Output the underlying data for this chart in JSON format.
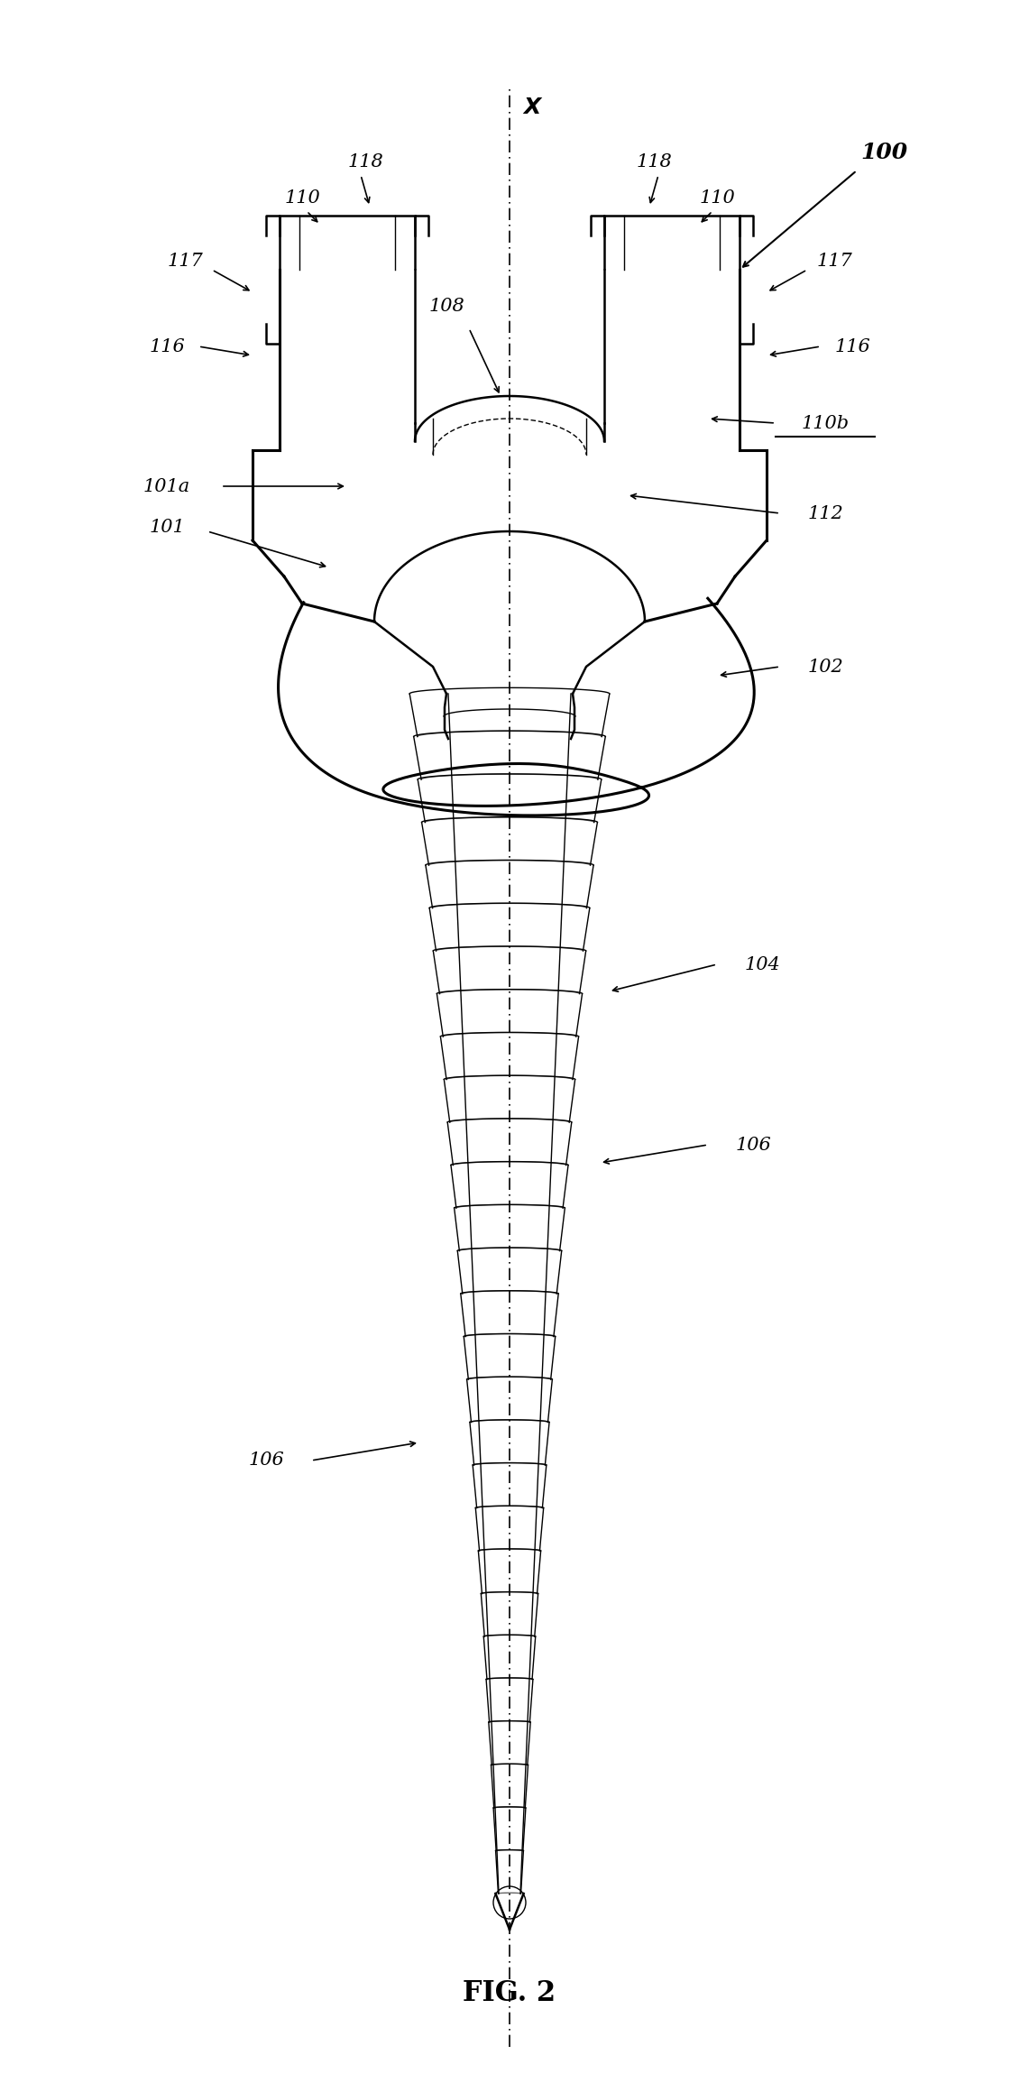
{
  "title": "FIG. 2",
  "ref_100": "100",
  "ref_102": "102",
  "ref_104": "104",
  "ref_106": "106",
  "ref_108": "108",
  "ref_110": "110",
  "ref_110b": "110b",
  "ref_112": "112",
  "ref_116": "116",
  "ref_117": "117",
  "ref_118": "118",
  "ref_101": "101",
  "ref_101a": "101a",
  "axis_label": "X",
  "bg_color": "#ffffff",
  "line_color": "#000000",
  "gray_color": "#aaaaaa",
  "light_gray": "#cccccc",
  "lw_main": 1.8,
  "lw_thin": 1.0,
  "lw_thick": 2.2
}
